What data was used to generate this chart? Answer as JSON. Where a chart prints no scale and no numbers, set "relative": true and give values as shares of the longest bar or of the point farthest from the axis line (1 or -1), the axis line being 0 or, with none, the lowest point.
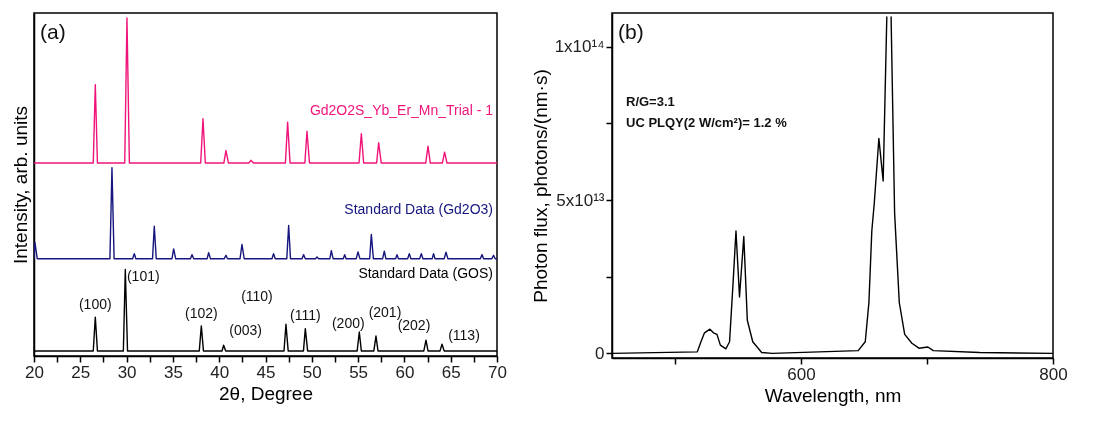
{
  "chart_data": [
    {
      "type": "line",
      "relative": true,
      "xlabel": "2θ, Degree",
      "ylabel": "Intensity, arb. units",
      "xlim": [
        20,
        70
      ],
      "xticks": [
        20,
        {
          "value": 22.5,
          "label": null
        },
        25,
        {
          "value": 27.5,
          "label": null
        },
        30,
        {
          "value": 32.5,
          "label": null
        },
        35,
        {
          "value": 37.5,
          "label": null
        },
        40,
        {
          "value": 42.5,
          "label": null
        },
        45,
        {
          "value": 47.5,
          "label": null
        },
        50,
        {
          "value": 52.5,
          "label": null
        },
        55,
        {
          "value": 57.5,
          "label": null
        },
        60,
        {
          "value": 62.5,
          "label": null
        },
        65,
        {
          "value": 67.5,
          "label": null
        },
        70
      ],
      "tick_labels": "x",
      "series": [
        {
          "name": "Gd2O2S_Yb_Er_Mn_Trial - 1",
          "color": "#f0147a",
          "x": [
            20,
            26.4,
            26.62,
            26.85,
            29.8,
            30.04,
            30.3,
            38.0,
            38.25,
            38.5,
            40.5,
            40.73,
            41.0,
            43.2,
            43.43,
            43.7,
            47.15,
            47.39,
            47.65,
            49.25,
            49.48,
            49.75,
            55.1,
            55.35,
            55.6,
            57.0,
            57.22,
            57.5,
            62.3,
            62.55,
            62.8,
            64.1,
            64.34,
            64.6,
            70
          ],
          "values": [
            0.571,
            0.571,
            0.803,
            0.571,
            0.571,
            1.0,
            0.571,
            0.571,
            0.702,
            0.571,
            0.571,
            0.608,
            0.571,
            0.571,
            0.579,
            0.571,
            0.571,
            0.692,
            0.571,
            0.571,
            0.665,
            0.571,
            0.571,
            0.658,
            0.571,
            0.571,
            0.631,
            0.571,
            0.571,
            0.621,
            0.571,
            0.571,
            0.603,
            0.571,
            0.571
          ]
        },
        {
          "name": "Standard Data (Gd2O3)",
          "color": "#16167e",
          "x": [
            20,
            20.1,
            20.35,
            28.2,
            28.42,
            28.65,
            30.65,
            30.83,
            31.0,
            32.8,
            32.99,
            33.2,
            34.9,
            35.08,
            35.3,
            36.9,
            37.06,
            37.25,
            38.7,
            38.86,
            39.05,
            40.55,
            40.73,
            40.9,
            42.25,
            42.46,
            42.7,
            45.7,
            45.87,
            46.05,
            47.3,
            47.5,
            47.7,
            48.95,
            49.11,
            49.3,
            50.4,
            50.56,
            50.75,
            51.95,
            52.11,
            52.3,
            53.4,
            53.55,
            53.7,
            54.8,
            54.99,
            55.2,
            56.25,
            56.43,
            56.65,
            57.65,
            57.83,
            58.0,
            59.05,
            59.2,
            59.35,
            60.35,
            60.53,
            60.7,
            61.65,
            61.83,
            62.0,
            63.0,
            63.15,
            63.3,
            64.3,
            64.49,
            64.7,
            68.2,
            68.38,
            68.55,
            69.45,
            69.63,
            69.8,
            70
          ],
          "values": [
            0.288,
            0.336,
            0.288,
            0.288,
            0.557,
            0.288,
            0.288,
            0.303,
            0.288,
            0.288,
            0.384,
            0.288,
            0.288,
            0.317,
            0.288,
            0.288,
            0.3,
            0.288,
            0.288,
            0.306,
            0.288,
            0.288,
            0.298,
            0.288,
            0.288,
            0.33,
            0.288,
            0.288,
            0.303,
            0.288,
            0.288,
            0.386,
            0.288,
            0.288,
            0.3,
            0.288,
            0.288,
            0.293,
            0.288,
            0.288,
            0.312,
            0.288,
            0.288,
            0.3,
            0.288,
            0.288,
            0.308,
            0.288,
            0.288,
            0.36,
            0.288,
            0.288,
            0.31,
            0.288,
            0.288,
            0.3,
            0.288,
            0.288,
            0.303,
            0.288,
            0.288,
            0.303,
            0.288,
            0.288,
            0.303,
            0.288,
            0.288,
            0.307,
            0.288,
            0.288,
            0.3,
            0.288,
            0.288,
            0.298,
            0.288,
            0.288
          ]
        },
        {
          "name": "Standard Data (GOS)",
          "color": "#000000",
          "x": [
            20,
            26.4,
            26.62,
            26.85,
            29.65,
            29.86,
            30.1,
            37.85,
            38.07,
            38.3,
            40.3,
            40.48,
            40.7,
            47.0,
            47.21,
            47.45,
            49.1,
            49.3,
            49.55,
            54.9,
            55.13,
            55.35,
            56.7,
            56.93,
            57.15,
            62.1,
            62.33,
            62.55,
            63.85,
            64.06,
            64.3,
            70
          ],
          "values": [
            0.015,
            0.015,
            0.115,
            0.015,
            0.015,
            0.256,
            0.015,
            0.015,
            0.089,
            0.015,
            0.015,
            0.032,
            0.015,
            0.015,
            0.094,
            0.015,
            0.015,
            0.081,
            0.015,
            0.015,
            0.071,
            0.015,
            0.015,
            0.059,
            0.015,
            0.015,
            0.047,
            0.015,
            0.015,
            0.035,
            0.015,
            0.015
          ]
        }
      ],
      "annotations": [
        "(a)",
        {
          "text": "(100)",
          "x": 26.62,
          "y": 0.115
        },
        {
          "text": "(101)",
          "x": 29.86,
          "y": 0.256
        },
        {
          "text": "(102)",
          "x": 38.07,
          "y": 0.089
        },
        {
          "text": "(003)",
          "x": 40.48,
          "y": 0.032
        },
        {
          "text": "(110)",
          "x": 47.21,
          "y": 0.094
        },
        {
          "text": "(111)",
          "x": 49.3,
          "y": 0.081
        },
        {
          "text": "(200)",
          "x": 55.13,
          "y": 0.071
        },
        {
          "text": "(201)",
          "x": 56.93,
          "y": 0.059
        },
        {
          "text": "(202)",
          "x": 62.33,
          "y": 0.047
        },
        {
          "text": "(113)",
          "x": 64.06,
          "y": 0.035
        }
      ]
    },
    {
      "type": "line",
      "xlabel": "Wavelength, nm",
      "ylabel": "Photon flux, photons/(nm·s)",
      "xlim": [
        450,
        800
      ],
      "xticks": [
        {
          "value": 500,
          "label": null
        },
        600,
        {
          "value": 700,
          "label": null
        },
        800
      ],
      "ylim": [
        -1500000000000.0,
        111000000000000.0
      ],
      "yticks": [
        0,
        {
          "value": 25000000000000.0,
          "label": null
        },
        {
          "value": 50000000000000.0,
          "label": "5x10¹³"
        },
        {
          "value": 75000000000000.0,
          "label": null
        },
        {
          "value": 100000000000000.0,
          "label": "1x10¹⁴"
        }
      ],
      "color": "#000000",
      "x": [
        450,
        517.7,
        520.6,
        523.4,
        527.7,
        530.5,
        533.3,
        536,
        540.4,
        543.3,
        546,
        548.4,
        551.2,
        554.6,
        557.4,
        561.7,
        568.8,
        577,
        645.4,
        651,
        653.9,
        656.2,
        658.2,
        661.8,
        665.2,
        668.1,
        668.8,
        670.8,
        671.5,
        674.3,
        678,
        682.3,
        688,
        693.6,
        700.7,
        705,
        741.8,
        800
      ],
      "values": [
        0,
        500000000000.0,
        3800000000000.0,
        6700000000000.0,
        7900000000000.0,
        6700000000000.0,
        6200000000000.0,
        2700000000000.0,
        1500000000000.0,
        3800000000000.0,
        22400000000000.0,
        39900000000000.0,
        18400000000000.0,
        38100000000000.0,
        10800000000000.0,
        3800000000000.0,
        300000000000.0,
        0,
        900000000000.0,
        3800000000000.0,
        16600000000000.0,
        39900000000000.0,
        49200000000000.0,
        70100000000000.0,
        56200000000000.0,
        109700000000000.0,
        null,
        null,
        109700000000000.0,
        45700000000000.0,
        16600000000000.0,
        6200000000000.0,
        3300000000000.0,
        1700000000000.0,
        2100000000000.0,
        900000000000.0,
        300000000000.0,
        0
      ],
      "annotations": [
        "(b)",
        "R/G=3.1",
        "UC PLQY(2 W/cm²)= 1.2 %"
      ]
    }
  ]
}
